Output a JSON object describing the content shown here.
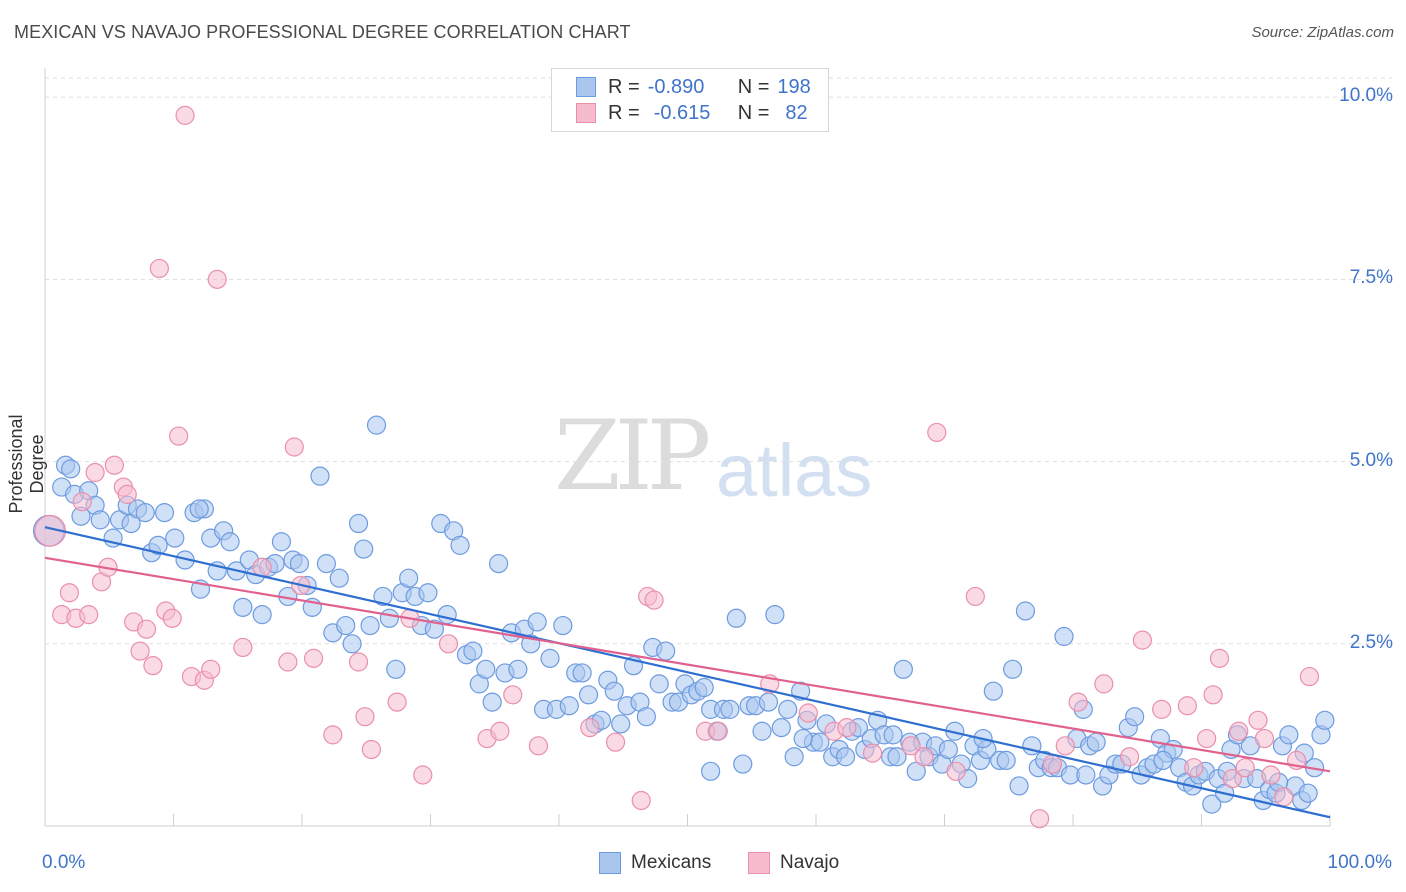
{
  "title": "MEXICAN VS NAVAJO PROFESSIONAL DEGREE CORRELATION CHART",
  "source": "Source: ZipAtlas.com",
  "watermark": {
    "zip": "ZIP",
    "atlas": "atlas"
  },
  "legend": {
    "r_label": "R =",
    "n_label": "N =",
    "mexicans": {
      "r": "-0.890",
      "n": "198"
    },
    "navajo": {
      "r": "-0.615",
      "n": "82"
    }
  },
  "colors": {
    "blue_fill": "#a9c6ee",
    "blue_stroke": "#6d9be0",
    "blue_line": "#2f6fd0",
    "pink_fill": "#f6bccd",
    "pink_stroke": "#ea8fac",
    "pink_line": "#e0618e",
    "tick_text": "#3f74c9",
    "grid": "#dddddd"
  },
  "chart_data": {
    "type": "scatter",
    "title": "MEXICAN VS NAVAJO PROFESSIONAL DEGREE CORRELATION CHART",
    "xlabel_left": "0.0%",
    "xlabel_right": "100.0%",
    "ylabel": "Professional Degree",
    "xlim": [
      0,
      100
    ],
    "ylim": [
      0,
      10.4
    ],
    "yticks": [
      {
        "value": 2.5,
        "label": "2.5%"
      },
      {
        "value": 5.0,
        "label": "5.0%"
      },
      {
        "value": 7.5,
        "label": "7.5%"
      },
      {
        "value": 10.0,
        "label": "10.0%"
      }
    ],
    "series": [
      {
        "name": "Mexicans",
        "trend": {
          "x": [
            0,
            100
          ],
          "y": [
            4.1,
            0.12
          ]
        },
        "points": [
          [
            0.3,
            4.05
          ],
          [
            1.6,
            4.95
          ],
          [
            1.3,
            4.65
          ],
          [
            2.3,
            4.55
          ],
          [
            2.8,
            4.25
          ],
          [
            3.4,
            4.6
          ],
          [
            3.9,
            4.4
          ],
          [
            4.3,
            4.2
          ],
          [
            5.3,
            3.95
          ],
          [
            5.8,
            4.2
          ],
          [
            6.4,
            4.4
          ],
          [
            6.7,
            4.15
          ],
          [
            7.2,
            4.35
          ],
          [
            7.8,
            4.3
          ],
          [
            8.3,
            3.75
          ],
          [
            9.3,
            4.3
          ],
          [
            10.1,
            3.95
          ],
          [
            10.9,
            3.65
          ],
          [
            11.6,
            4.3
          ],
          [
            12.1,
            3.25
          ],
          [
            12.4,
            4.35
          ],
          [
            12.9,
            3.95
          ],
          [
            13.4,
            3.5
          ],
          [
            13.9,
            4.05
          ],
          [
            14.4,
            3.9
          ],
          [
            14.9,
            3.5
          ],
          [
            15.4,
            3.0
          ],
          [
            15.9,
            3.65
          ],
          [
            16.4,
            3.45
          ],
          [
            16.9,
            2.9
          ],
          [
            17.4,
            3.55
          ],
          [
            17.9,
            3.6
          ],
          [
            18.4,
            3.9
          ],
          [
            18.9,
            3.15
          ],
          [
            19.3,
            3.65
          ],
          [
            19.8,
            3.6
          ],
          [
            20.4,
            3.3
          ],
          [
            20.8,
            3.0
          ],
          [
            21.4,
            4.8
          ],
          [
            21.9,
            3.6
          ],
          [
            22.4,
            2.65
          ],
          [
            22.9,
            3.4
          ],
          [
            23.4,
            2.75
          ],
          [
            23.9,
            2.5
          ],
          [
            24.4,
            4.15
          ],
          [
            24.8,
            3.8
          ],
          [
            25.3,
            2.75
          ],
          [
            25.8,
            5.5
          ],
          [
            26.3,
            3.15
          ],
          [
            26.8,
            2.85
          ],
          [
            27.3,
            2.15
          ],
          [
            27.8,
            3.2
          ],
          [
            28.3,
            3.4
          ],
          [
            28.8,
            3.15
          ],
          [
            29.3,
            2.75
          ],
          [
            29.8,
            3.2
          ],
          [
            30.3,
            2.7
          ],
          [
            30.8,
            4.15
          ],
          [
            31.3,
            2.9
          ],
          [
            31.8,
            4.05
          ],
          [
            32.3,
            3.85
          ],
          [
            32.8,
            2.35
          ],
          [
            33.3,
            2.4
          ],
          [
            33.8,
            1.95
          ],
          [
            34.3,
            2.15
          ],
          [
            34.8,
            1.7
          ],
          [
            35.3,
            3.6
          ],
          [
            35.8,
            2.1
          ],
          [
            36.3,
            2.65
          ],
          [
            36.8,
            2.15
          ],
          [
            37.3,
            2.7
          ],
          [
            37.8,
            2.5
          ],
          [
            38.3,
            2.8
          ],
          [
            38.8,
            1.6
          ],
          [
            39.3,
            2.3
          ],
          [
            39.8,
            1.6
          ],
          [
            40.3,
            2.75
          ],
          [
            40.8,
            1.65
          ],
          [
            41.3,
            2.1
          ],
          [
            41.8,
            2.1
          ],
          [
            42.3,
            1.8
          ],
          [
            42.8,
            1.4
          ],
          [
            43.3,
            1.45
          ],
          [
            43.8,
            2.0
          ],
          [
            44.3,
            1.85
          ],
          [
            44.8,
            1.4
          ],
          [
            45.3,
            1.65
          ],
          [
            45.8,
            2.2
          ],
          [
            46.3,
            1.7
          ],
          [
            46.8,
            1.5
          ],
          [
            47.3,
            2.45
          ],
          [
            47.8,
            1.95
          ],
          [
            48.3,
            2.4
          ],
          [
            48.8,
            1.7
          ],
          [
            49.3,
            1.7
          ],
          [
            49.8,
            1.95
          ],
          [
            50.3,
            1.8
          ],
          [
            50.8,
            1.85
          ],
          [
            51.3,
            1.9
          ],
          [
            51.8,
            1.6
          ],
          [
            52.3,
            1.3
          ],
          [
            52.8,
            1.6
          ],
          [
            53.3,
            1.6
          ],
          [
            53.8,
            2.85
          ],
          [
            54.3,
            0.85
          ],
          [
            54.8,
            1.65
          ],
          [
            55.3,
            1.65
          ],
          [
            55.8,
            1.3
          ],
          [
            56.3,
            1.7
          ],
          [
            56.8,
            2.9
          ],
          [
            57.3,
            1.35
          ],
          [
            57.8,
            1.6
          ],
          [
            58.3,
            0.95
          ],
          [
            58.8,
            1.85
          ],
          [
            59.3,
            1.45
          ],
          [
            59.8,
            1.15
          ],
          [
            60.3,
            1.15
          ],
          [
            60.8,
            1.4
          ],
          [
            61.3,
            0.95
          ],
          [
            61.8,
            1.05
          ],
          [
            62.3,
            0.95
          ],
          [
            62.8,
            1.3
          ],
          [
            63.3,
            1.35
          ],
          [
            63.8,
            1.05
          ],
          [
            64.3,
            1.2
          ],
          [
            64.8,
            1.45
          ],
          [
            65.3,
            1.25
          ],
          [
            65.8,
            0.95
          ],
          [
            66.3,
            0.95
          ],
          [
            66.8,
            2.15
          ],
          [
            67.3,
            1.15
          ],
          [
            67.8,
            0.75
          ],
          [
            68.3,
            1.15
          ],
          [
            68.8,
            0.95
          ],
          [
            69.3,
            1.1
          ],
          [
            69.8,
            0.85
          ],
          [
            70.3,
            1.05
          ],
          [
            70.8,
            1.3
          ],
          [
            71.3,
            0.85
          ],
          [
            71.8,
            0.65
          ],
          [
            72.3,
            1.1
          ],
          [
            72.8,
            0.9
          ],
          [
            73.3,
            1.05
          ],
          [
            73.8,
            1.85
          ],
          [
            74.3,
            0.9
          ],
          [
            74.8,
            0.9
          ],
          [
            75.3,
            2.15
          ],
          [
            75.8,
            0.55
          ],
          [
            76.3,
            2.95
          ],
          [
            76.8,
            1.1
          ],
          [
            77.3,
            0.8
          ],
          [
            77.8,
            0.9
          ],
          [
            78.3,
            0.8
          ],
          [
            78.8,
            0.8
          ],
          [
            79.3,
            2.6
          ],
          [
            79.8,
            0.7
          ],
          [
            80.3,
            1.2
          ],
          [
            80.8,
            1.6
          ],
          [
            81.3,
            1.1
          ],
          [
            81.8,
            1.15
          ],
          [
            82.3,
            0.55
          ],
          [
            82.8,
            0.7
          ],
          [
            83.3,
            0.85
          ],
          [
            83.8,
            0.85
          ],
          [
            84.3,
            1.35
          ],
          [
            84.8,
            1.5
          ],
          [
            85.3,
            0.7
          ],
          [
            85.8,
            0.8
          ],
          [
            86.3,
            0.85
          ],
          [
            86.8,
            1.2
          ],
          [
            87.3,
            1.0
          ],
          [
            87.8,
            1.05
          ],
          [
            88.3,
            0.8
          ],
          [
            88.8,
            0.6
          ],
          [
            89.3,
            0.55
          ],
          [
            89.8,
            0.7
          ],
          [
            90.3,
            0.75
          ],
          [
            90.8,
            0.3
          ],
          [
            91.3,
            0.65
          ],
          [
            91.8,
            0.45
          ],
          [
            92.3,
            1.05
          ],
          [
            92.8,
            1.25
          ],
          [
            93.3,
            0.65
          ],
          [
            93.8,
            1.1
          ],
          [
            94.3,
            0.65
          ],
          [
            94.8,
            0.35
          ],
          [
            95.3,
            0.5
          ],
          [
            95.8,
            0.45
          ],
          [
            96.3,
            1.1
          ],
          [
            96.8,
            1.25
          ],
          [
            97.3,
            0.55
          ],
          [
            97.8,
            0.35
          ],
          [
            98.3,
            0.45
          ],
          [
            98.8,
            0.8
          ],
          [
            99.3,
            1.25
          ],
          [
            99.6,
            1.45
          ],
          [
            2.0,
            4.9
          ],
          [
            8.8,
            3.85
          ],
          [
            12.0,
            4.35
          ],
          [
            51.8,
            0.75
          ],
          [
            59.0,
            1.2
          ],
          [
            66.0,
            1.25
          ],
          [
            73.0,
            1.2
          ],
          [
            81.0,
            0.7
          ],
          [
            87.0,
            0.9
          ],
          [
            92.0,
            0.75
          ],
          [
            96.0,
            0.6
          ],
          [
            98.0,
            1.0
          ]
        ]
      },
      {
        "name": "Navajo",
        "trend": {
          "x": [
            0,
            100
          ],
          "y": [
            3.68,
            0.75
          ]
        },
        "points": [
          [
            0.4,
            4.05
          ],
          [
            1.3,
            2.9
          ],
          [
            1.9,
            3.2
          ],
          [
            2.4,
            2.85
          ],
          [
            2.9,
            4.45
          ],
          [
            3.4,
            2.9
          ],
          [
            3.9,
            4.85
          ],
          [
            4.4,
            3.35
          ],
          [
            4.9,
            3.55
          ],
          [
            5.4,
            4.95
          ],
          [
            6.1,
            4.65
          ],
          [
            6.4,
            4.55
          ],
          [
            6.9,
            2.8
          ],
          [
            7.4,
            2.4
          ],
          [
            7.9,
            2.7
          ],
          [
            8.4,
            2.2
          ],
          [
            8.9,
            7.65
          ],
          [
            9.4,
            2.95
          ],
          [
            9.9,
            2.85
          ],
          [
            10.4,
            5.35
          ],
          [
            10.9,
            9.75
          ],
          [
            11.4,
            2.05
          ],
          [
            12.4,
            2.0
          ],
          [
            12.9,
            2.15
          ],
          [
            13.4,
            7.5
          ],
          [
            15.4,
            2.45
          ],
          [
            16.9,
            3.55
          ],
          [
            18.9,
            2.25
          ],
          [
            19.4,
            5.2
          ],
          [
            19.9,
            3.3
          ],
          [
            20.9,
            2.3
          ],
          [
            22.4,
            1.25
          ],
          [
            24.4,
            2.25
          ],
          [
            24.9,
            1.5
          ],
          [
            25.4,
            1.05
          ],
          [
            27.4,
            1.7
          ],
          [
            28.4,
            2.85
          ],
          [
            29.4,
            0.7
          ],
          [
            31.4,
            2.5
          ],
          [
            34.4,
            1.2
          ],
          [
            35.4,
            1.3
          ],
          [
            36.4,
            1.8
          ],
          [
            38.4,
            1.1
          ],
          [
            42.4,
            1.35
          ],
          [
            44.4,
            1.15
          ],
          [
            46.4,
            0.35
          ],
          [
            46.9,
            3.15
          ],
          [
            47.4,
            3.1
          ],
          [
            51.4,
            1.3
          ],
          [
            52.4,
            1.3
          ],
          [
            56.4,
            1.95
          ],
          [
            59.4,
            1.55
          ],
          [
            61.4,
            1.3
          ],
          [
            62.4,
            1.35
          ],
          [
            64.4,
            1.0
          ],
          [
            67.4,
            1.1
          ],
          [
            68.4,
            0.95
          ],
          [
            69.4,
            5.4
          ],
          [
            70.9,
            0.75
          ],
          [
            72.4,
            3.15
          ],
          [
            77.4,
            0.1
          ],
          [
            78.4,
            0.85
          ],
          [
            79.4,
            1.1
          ],
          [
            80.4,
            1.7
          ],
          [
            82.4,
            1.95
          ],
          [
            84.4,
            0.95
          ],
          [
            85.4,
            2.55
          ],
          [
            86.9,
            1.6
          ],
          [
            88.9,
            1.65
          ],
          [
            89.4,
            0.8
          ],
          [
            90.4,
            1.2
          ],
          [
            90.9,
            1.8
          ],
          [
            91.4,
            2.3
          ],
          [
            92.4,
            0.65
          ],
          [
            92.9,
            1.3
          ],
          [
            93.4,
            0.8
          ],
          [
            94.4,
            1.45
          ],
          [
            94.9,
            1.2
          ],
          [
            95.4,
            0.7
          ],
          [
            96.4,
            0.4
          ],
          [
            97.4,
            0.9
          ],
          [
            98.4,
            2.05
          ]
        ]
      }
    ]
  }
}
